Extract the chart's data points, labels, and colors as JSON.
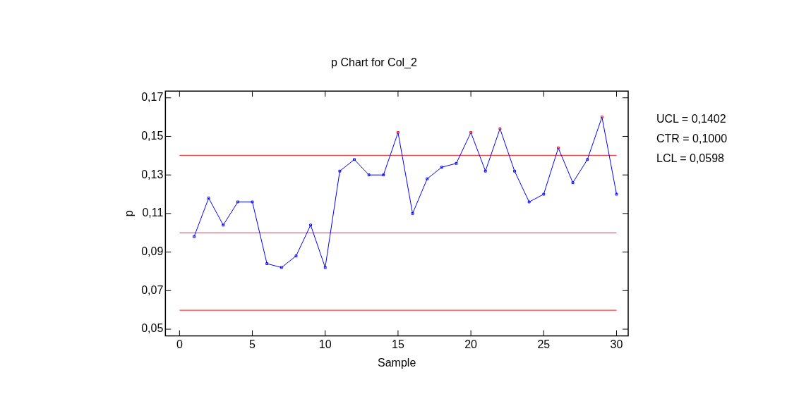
{
  "chart_data": {
    "type": "line",
    "title": "p Chart for Col_2",
    "xlabel": "Sample",
    "ylabel": "p",
    "x": [
      1,
      2,
      3,
      4,
      5,
      6,
      7,
      8,
      9,
      10,
      11,
      12,
      13,
      14,
      15,
      16,
      17,
      18,
      19,
      20,
      21,
      22,
      23,
      24,
      25,
      26,
      27,
      28,
      29,
      30
    ],
    "series": [
      {
        "color": "#0000ff",
        "colors": [
          "#0000ff",
          "#0000ff",
          "#0000ff",
          "#0000ff",
          "#0000ff",
          "#0000ff",
          "#0000ff",
          "#0000ff",
          "#0000ff",
          "#0000ff",
          "#0000ff",
          "#0000ff",
          "#0000ff",
          "#0000ff",
          "#ff0000",
          "#0000ff",
          "#0000ff",
          "#0000ff",
          "#0000ff",
          "#ff0000",
          "#0000ff",
          "#ff0000",
          "#0000ff",
          "#0000ff",
          "#0000ff",
          "#ff0000",
          "#0000ff",
          "#0000ff",
          "#ff0000",
          "#0000ff"
        ],
        "values": [
          0.098,
          0.118,
          0.104,
          0.116,
          0.116,
          0.084,
          0.082,
          0.088,
          0.104,
          0.082,
          0.132,
          0.138,
          0.13,
          0.13,
          0.152,
          0.11,
          0.128,
          0.134,
          0.136,
          0.152,
          0.132,
          0.154,
          0.132,
          0.116,
          0.12,
          0.144,
          0.126,
          0.138,
          0.16,
          0.12
        ]
      }
    ],
    "xlim": [
      -0.97,
      30.8
    ],
    "xticks": [
      0,
      5,
      10,
      15,
      20,
      25,
      30
    ],
    "ylim": [
      0.0465,
      0.1735
    ],
    "yticks": [
      {
        "value": 0.05,
        "label": "0,05"
      },
      {
        "value": 0.07,
        "label": "0,07"
      },
      {
        "value": 0.09,
        "label": "0,09"
      },
      {
        "value": 0.11,
        "label": "0,11"
      },
      {
        "value": 0.13,
        "label": "0,13"
      },
      {
        "value": 0.15,
        "label": "0,15"
      },
      {
        "value": 0.17,
        "label": "0,17"
      }
    ],
    "ref_lines": [
      {
        "axis": "y",
        "value": 0.1402,
        "color": "#ff4040"
      },
      {
        "axis": "y",
        "value": 0.1,
        "color": "#a0506e"
      },
      {
        "axis": "y",
        "value": 0.0598,
        "color": "#ff4040"
      }
    ],
    "annotations": [
      "UCL = 0,1402",
      "CTR = 0,1000",
      "LCL = 0,0598"
    ],
    "grid": false,
    "legend": false,
    "marker": "square",
    "line_style": "solid"
  }
}
